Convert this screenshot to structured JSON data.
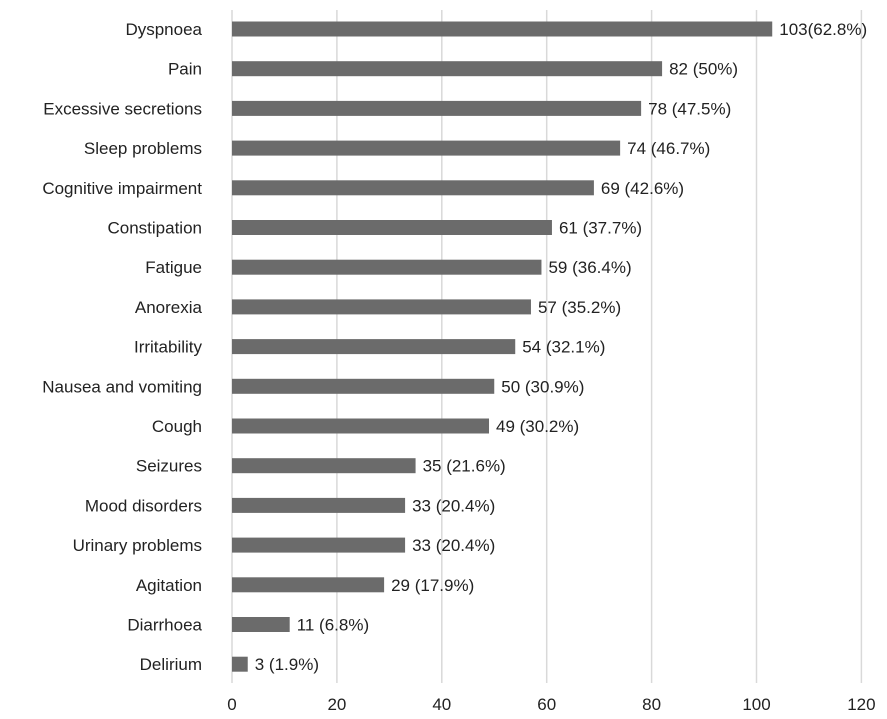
{
  "chart_data": {
    "type": "bar",
    "orientation": "horizontal",
    "categories": [
      "Dyspnoea",
      "Pain",
      "Excessive secretions",
      "Sleep problems",
      "Cognitive impairment",
      "Constipation",
      "Fatigue",
      "Anorexia",
      "Irritability",
      "Nausea and vomiting",
      "Cough",
      "Seizures",
      "Mood disorders",
      "Urinary problems",
      "Agitation",
      "Diarrhoea",
      "Delirium"
    ],
    "values": [
      103,
      82,
      78,
      74,
      69,
      61,
      59,
      57,
      54,
      50,
      49,
      35,
      33,
      33,
      29,
      11,
      3
    ],
    "data_labels": [
      "103(62.8%)",
      "82 (50%)",
      "78 (47.5%)",
      "74 (46.7%)",
      "69 (42.6%)",
      "61 (37.7%)",
      "59 (36.4%)",
      "57 (35.2%)",
      "54 (32.1%)",
      "50 (30.9%)",
      "49 (30.2%)",
      "35 (21.6%)",
      "33 (20.4%)",
      "33 (20.4%)",
      "29 (17.9%)",
      "11 (6.8%)",
      "3 (1.9%)"
    ],
    "x_ticks": [
      "0",
      "20",
      "40",
      "60",
      "80",
      "100",
      "120"
    ],
    "xlim": [
      0,
      120
    ],
    "grid": "vertical",
    "legend": "none",
    "bar_color": "#6b6b6b",
    "title": "",
    "xlabel": "",
    "ylabel": ""
  }
}
